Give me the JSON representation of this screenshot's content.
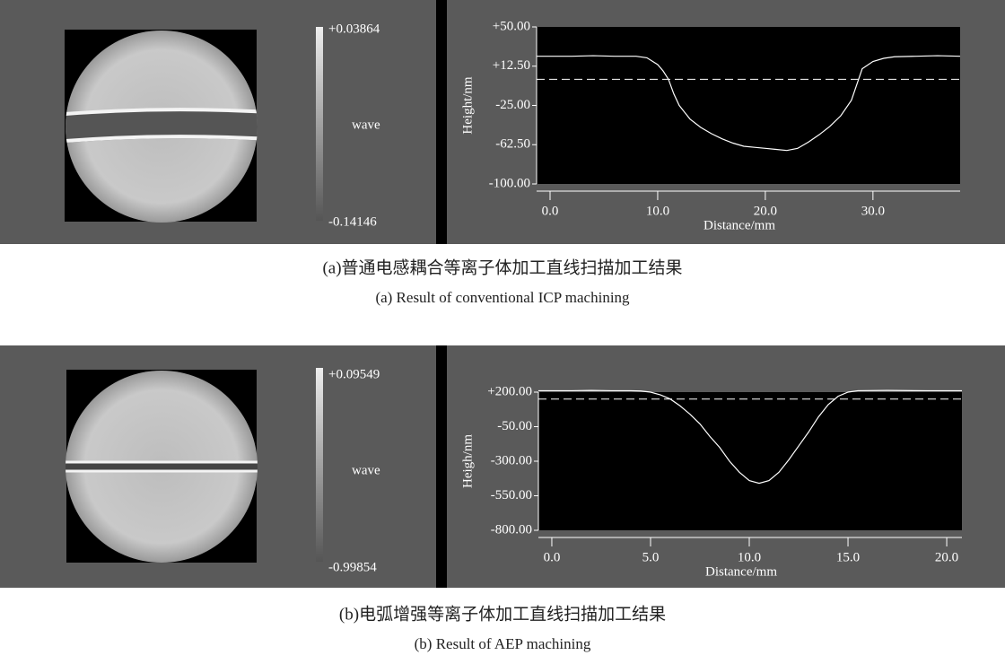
{
  "chart_data": [
    {
      "type": "line",
      "xlabel": "Distance/mm",
      "ylabel": "Height/nm",
      "xlim": [
        -1.25,
        38.1
      ],
      "ylim": [
        -100,
        50
      ],
      "xticks": [
        {
          "value": 0,
          "label": "0.0"
        },
        {
          "value": 10,
          "label": "10.0"
        },
        {
          "value": 20,
          "label": "20.0"
        },
        {
          "value": 30,
          "label": "30.0"
        }
      ],
      "yticks": [
        {
          "value": 50,
          "label": "+50.00"
        },
        {
          "value": 12.5,
          "label": "+12.50"
        },
        {
          "value": -25,
          "label": "-25.00"
        },
        {
          "value": -62.5,
          "label": "-62.50"
        },
        {
          "value": -100,
          "label": "-100.00"
        }
      ],
      "reference_line": 0,
      "x": [
        -1.25,
        0,
        2,
        4,
        6,
        8,
        9,
        10,
        10.5,
        11,
        11.5,
        12,
        13,
        14,
        15,
        16,
        17,
        18,
        19,
        20,
        21,
        22,
        23,
        24,
        25,
        26,
        27,
        28,
        28.5,
        29,
        30,
        31,
        32,
        34,
        36,
        38.1
      ],
      "series": [
        {
          "color": "#ffffff",
          "values": [
            22,
            22,
            22,
            22.5,
            22,
            22,
            20.5,
            14,
            8,
            0,
            -14,
            -25,
            -38,
            -46,
            -52,
            -57,
            -61,
            -64,
            -65,
            -66,
            -67,
            -68,
            -66,
            -60,
            -53,
            -45,
            -35,
            -20,
            -5,
            10,
            17,
            20,
            21.5,
            22,
            22.5,
            22
          ]
        }
      ]
    },
    {
      "type": "line",
      "xlabel": "Distance/mm",
      "ylabel": "Heigh/nm",
      "xlim": [
        -0.68,
        20.77
      ],
      "ylim": [
        -800,
        200
      ],
      "xticks": [
        {
          "value": 0,
          "label": "0.0"
        },
        {
          "value": 5,
          "label": "5.0"
        },
        {
          "value": 10,
          "label": "10.0"
        },
        {
          "value": 15,
          "label": "15.0"
        },
        {
          "value": 20,
          "label": "20.0"
        }
      ],
      "yticks": [
        {
          "value": 200,
          "label": "+200.00"
        },
        {
          "value": -50,
          "label": "-50.00"
        },
        {
          "value": -300,
          "label": "-300.00"
        },
        {
          "value": -550,
          "label": "-550.00"
        },
        {
          "value": -800,
          "label": "-800.00"
        }
      ],
      "reference_line": 150,
      "x": [
        -0.68,
        1,
        2,
        3,
        4,
        4.5,
        5,
        5.5,
        6,
        6.5,
        7,
        7.5,
        8,
        8.5,
        9,
        9.5,
        10,
        10.5,
        11,
        11.5,
        12,
        12.5,
        13,
        13.5,
        14,
        14.5,
        15,
        15.5,
        17,
        19,
        20.77
      ],
      "series": [
        {
          "color": "#ffffff",
          "values": [
            210,
            210,
            212,
            210,
            210,
            208,
            200,
            180,
            150,
            100,
            40,
            -30,
            -120,
            -200,
            -300,
            -380,
            -440,
            -460,
            -440,
            -380,
            -290,
            -190,
            -90,
            20,
            110,
            170,
            200,
            210,
            212,
            210,
            210
          ]
        }
      ]
    }
  ],
  "colorbars": [
    {
      "max": "+0.03864",
      "label": "wave",
      "min": "-0.14146"
    },
    {
      "max": "+0.09549",
      "label": "wave",
      "min": "-0.99854"
    }
  ],
  "captions": [
    {
      "zh": "(a)普通电感耦合等离子体加工直线扫描加工结果",
      "en": "(a) Result of conventional ICP machining"
    },
    {
      "zh": "(b)电弧增强等离子体加工直线扫描加工结果",
      "en": "(b) Result of AEP machining"
    }
  ]
}
